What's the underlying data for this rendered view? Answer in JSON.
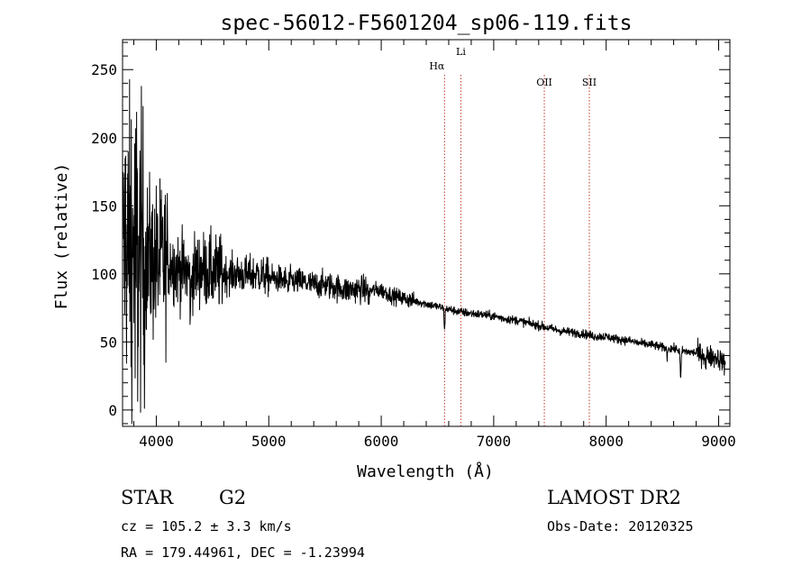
{
  "chart_data": {
    "type": "line",
    "title": "spec-56012-F5601204_sp06-119.fits",
    "xlabel": "Wavelength (Å)",
    "ylabel": "Flux (relative)",
    "xlim": [
      3700,
      9100
    ],
    "ylim": [
      -12,
      272
    ],
    "x_ticks": [
      4000,
      5000,
      6000,
      7000,
      8000,
      9000
    ],
    "y_ticks": [
      0,
      50,
      100,
      150,
      200,
      250
    ],
    "spectrum": {
      "name": "flux",
      "x": [
        3700,
        3800,
        3900,
        4000,
        4100,
        4200,
        4300,
        4400,
        4500,
        4600,
        4700,
        4800,
        4900,
        5000,
        5100,
        5200,
        5300,
        5400,
        5500,
        5600,
        5700,
        5800,
        5900,
        6000,
        6100,
        6200,
        6300,
        6400,
        6500,
        6600,
        6700,
        6800,
        6900,
        7000,
        7100,
        7200,
        7300,
        7400,
        7500,
        7600,
        7700,
        7800,
        7900,
        8000,
        8100,
        8200,
        8300,
        8400,
        8500,
        8600,
        8700,
        8800,
        8900,
        9000,
        9050
      ],
      "y": [
        120,
        118,
        112,
        108,
        110,
        103,
        100,
        104,
        101,
        100,
        100,
        99,
        100,
        97,
        96,
        95,
        94,
        92,
        92,
        90,
        88,
        89,
        88,
        88,
        84,
        82,
        80,
        78,
        76,
        74,
        72,
        71,
        70,
        69,
        67,
        66,
        64,
        62,
        60,
        58,
        57,
        56,
        54,
        54,
        52,
        51,
        49,
        48,
        46,
        45,
        43,
        42,
        40,
        38,
        34
      ]
    },
    "lines": [
      {
        "label": "Hα",
        "x": 6563
      },
      {
        "label": "Li",
        "x": 6708
      },
      {
        "label": "OII",
        "x": 7450
      },
      {
        "label": "SII",
        "x": 7850
      }
    ]
  },
  "info": {
    "object_class": "STAR",
    "subclass": "G2",
    "survey": "LAMOST DR2",
    "cz": "cz = 105.2 ± 3.3 km/s",
    "obs_date": "Obs-Date: 20120325",
    "coords": "RA = 179.44961, DEC =  -1.23994"
  },
  "colors": {
    "line_marker": "#c0392b",
    "ink": "#000000"
  }
}
